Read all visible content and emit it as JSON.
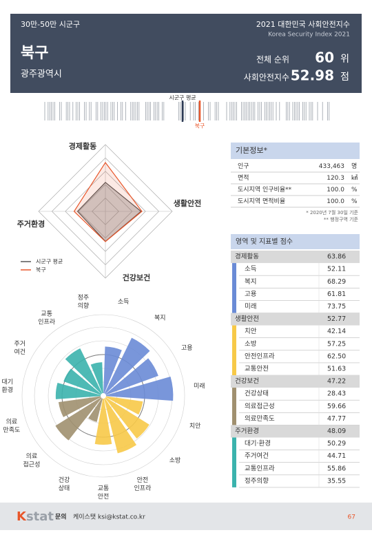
{
  "header": {
    "category": "30만-50만 시군구",
    "title": "2021 대한민국 사회안전지수",
    "subtitle": "Korea Security Index 2021",
    "district": "북구",
    "region": "광주광역시",
    "rank_label": "전체 순위",
    "rank": "60",
    "rank_unit": "위",
    "index_label": "사회안전지수",
    "index": "52.98",
    "index_unit": "점"
  },
  "barcode": {
    "average_label": "시군구 평균",
    "district_label": "북구"
  },
  "radar": {
    "type": "radar",
    "axes": [
      "경제활동",
      "생활안전",
      "건강보건",
      "주거환경"
    ],
    "rlim": [
      20,
      80
    ],
    "series": [
      {
        "name": "시군구 평균",
        "color": "#555555",
        "values": [
          46,
          52,
          47,
          45
        ]
      },
      {
        "name": "북구",
        "color": "#e8562a",
        "values": [
          63.86,
          52.77,
          47.22,
          48.09
        ]
      }
    ]
  },
  "polar": {
    "type": "polar-bar",
    "rlim": [
      0,
      80
    ],
    "labels": [
      [
        "소득"
      ],
      [
        "복지"
      ],
      [
        "고용"
      ],
      [
        "미래"
      ],
      [
        "치안"
      ],
      [
        "소방"
      ],
      [
        "안전",
        "인프라"
      ],
      [
        "교통",
        "안전"
      ],
      [
        "건강",
        "상태"
      ],
      [
        "의료",
        "접근성"
      ],
      [
        "의료",
        "만족도"
      ],
      [
        "대기",
        "환경"
      ],
      [
        "주거",
        "여건"
      ],
      [
        "교통",
        "인프라"
      ],
      [
        "정주",
        "의향"
      ]
    ]
  },
  "basic_info": {
    "title": "기본정보*",
    "rows": [
      [
        "인구",
        "433,463",
        "명"
      ],
      [
        "면적",
        "120.3",
        "㎢"
      ],
      [
        "도시지역 인구비율**",
        "100.0",
        "%"
      ],
      [
        "도시지역 면적비율",
        "100.0",
        "%"
      ]
    ],
    "notes": [
      "* 2020년 7월 30일 기준",
      "** 행정구역 기준"
    ]
  },
  "scores": {
    "title": "영역 및 지표별 점수",
    "groups": [
      {
        "name": "경제활동",
        "score": "63.86",
        "color": "#6a8bd6",
        "items": [
          {
            "name": "소득",
            "score": "52.11"
          },
          {
            "name": "복지",
            "score": "68.29"
          },
          {
            "name": "고용",
            "score": "61.81"
          },
          {
            "name": "미래",
            "score": "73.75"
          }
        ]
      },
      {
        "name": "생활안전",
        "score": "52.77",
        "color": "#f7c948",
        "items": [
          {
            "name": "치안",
            "score": "42.14"
          },
          {
            "name": "소방",
            "score": "57.25"
          },
          {
            "name": "안전인프라",
            "score": "62.50"
          },
          {
            "name": "교통안전",
            "score": "51.63"
          }
        ]
      },
      {
        "name": "건강보건",
        "score": "47.22",
        "color": "#a0906f",
        "items": [
          {
            "name": "건강상태",
            "score": "28.43"
          },
          {
            "name": "의료접근성",
            "score": "59.66"
          },
          {
            "name": "의료만족도",
            "score": "47.77"
          }
        ]
      },
      {
        "name": "주거환경",
        "score": "48.09",
        "color": "#3bb3ad",
        "items": [
          {
            "name": "대기·환경",
            "score": "50.29"
          },
          {
            "name": "주거여건",
            "score": "44.71"
          },
          {
            "name": "교통인프라",
            "score": "55.86"
          },
          {
            "name": "정주의향",
            "score": "35.55"
          }
        ]
      }
    ]
  },
  "footer": {
    "logo_k": "K",
    "logo_rest": "stat",
    "contact_label": "문의",
    "contact": "케이스탯 ksi@kstat.co.kr",
    "page": "67"
  }
}
